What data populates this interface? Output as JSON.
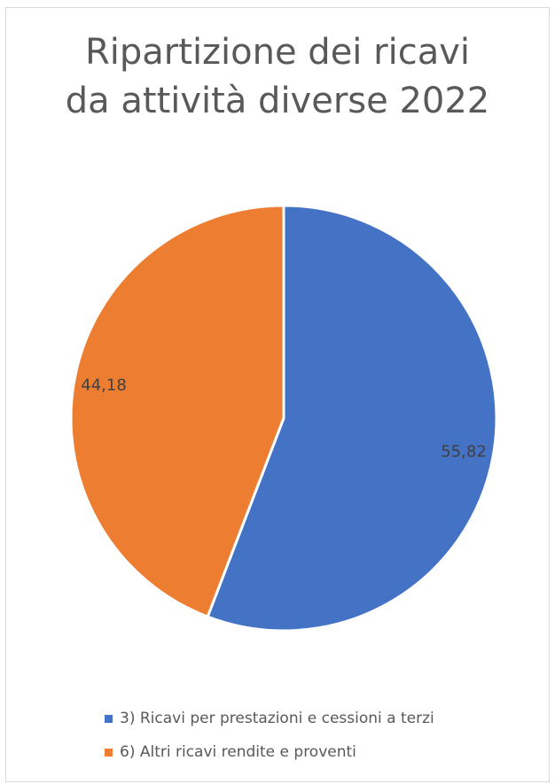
{
  "chart_data": {
    "type": "pie",
    "title_lines": [
      "Ripartizione dei ricavi",
      "da attività diverse 2022"
    ],
    "categories": [
      "3) Ricavi per prestazioni e cessioni a terzi",
      "6) Altri ricavi rendite e proventi"
    ],
    "values": [
      55.82,
      44.18
    ],
    "data_labels": [
      "55,82",
      "44,18"
    ],
    "colors": [
      "#4472C4",
      "#ED7D31"
    ],
    "start_angle_deg": 0,
    "direction": "clockwise",
    "legend_position": "bottom"
  }
}
